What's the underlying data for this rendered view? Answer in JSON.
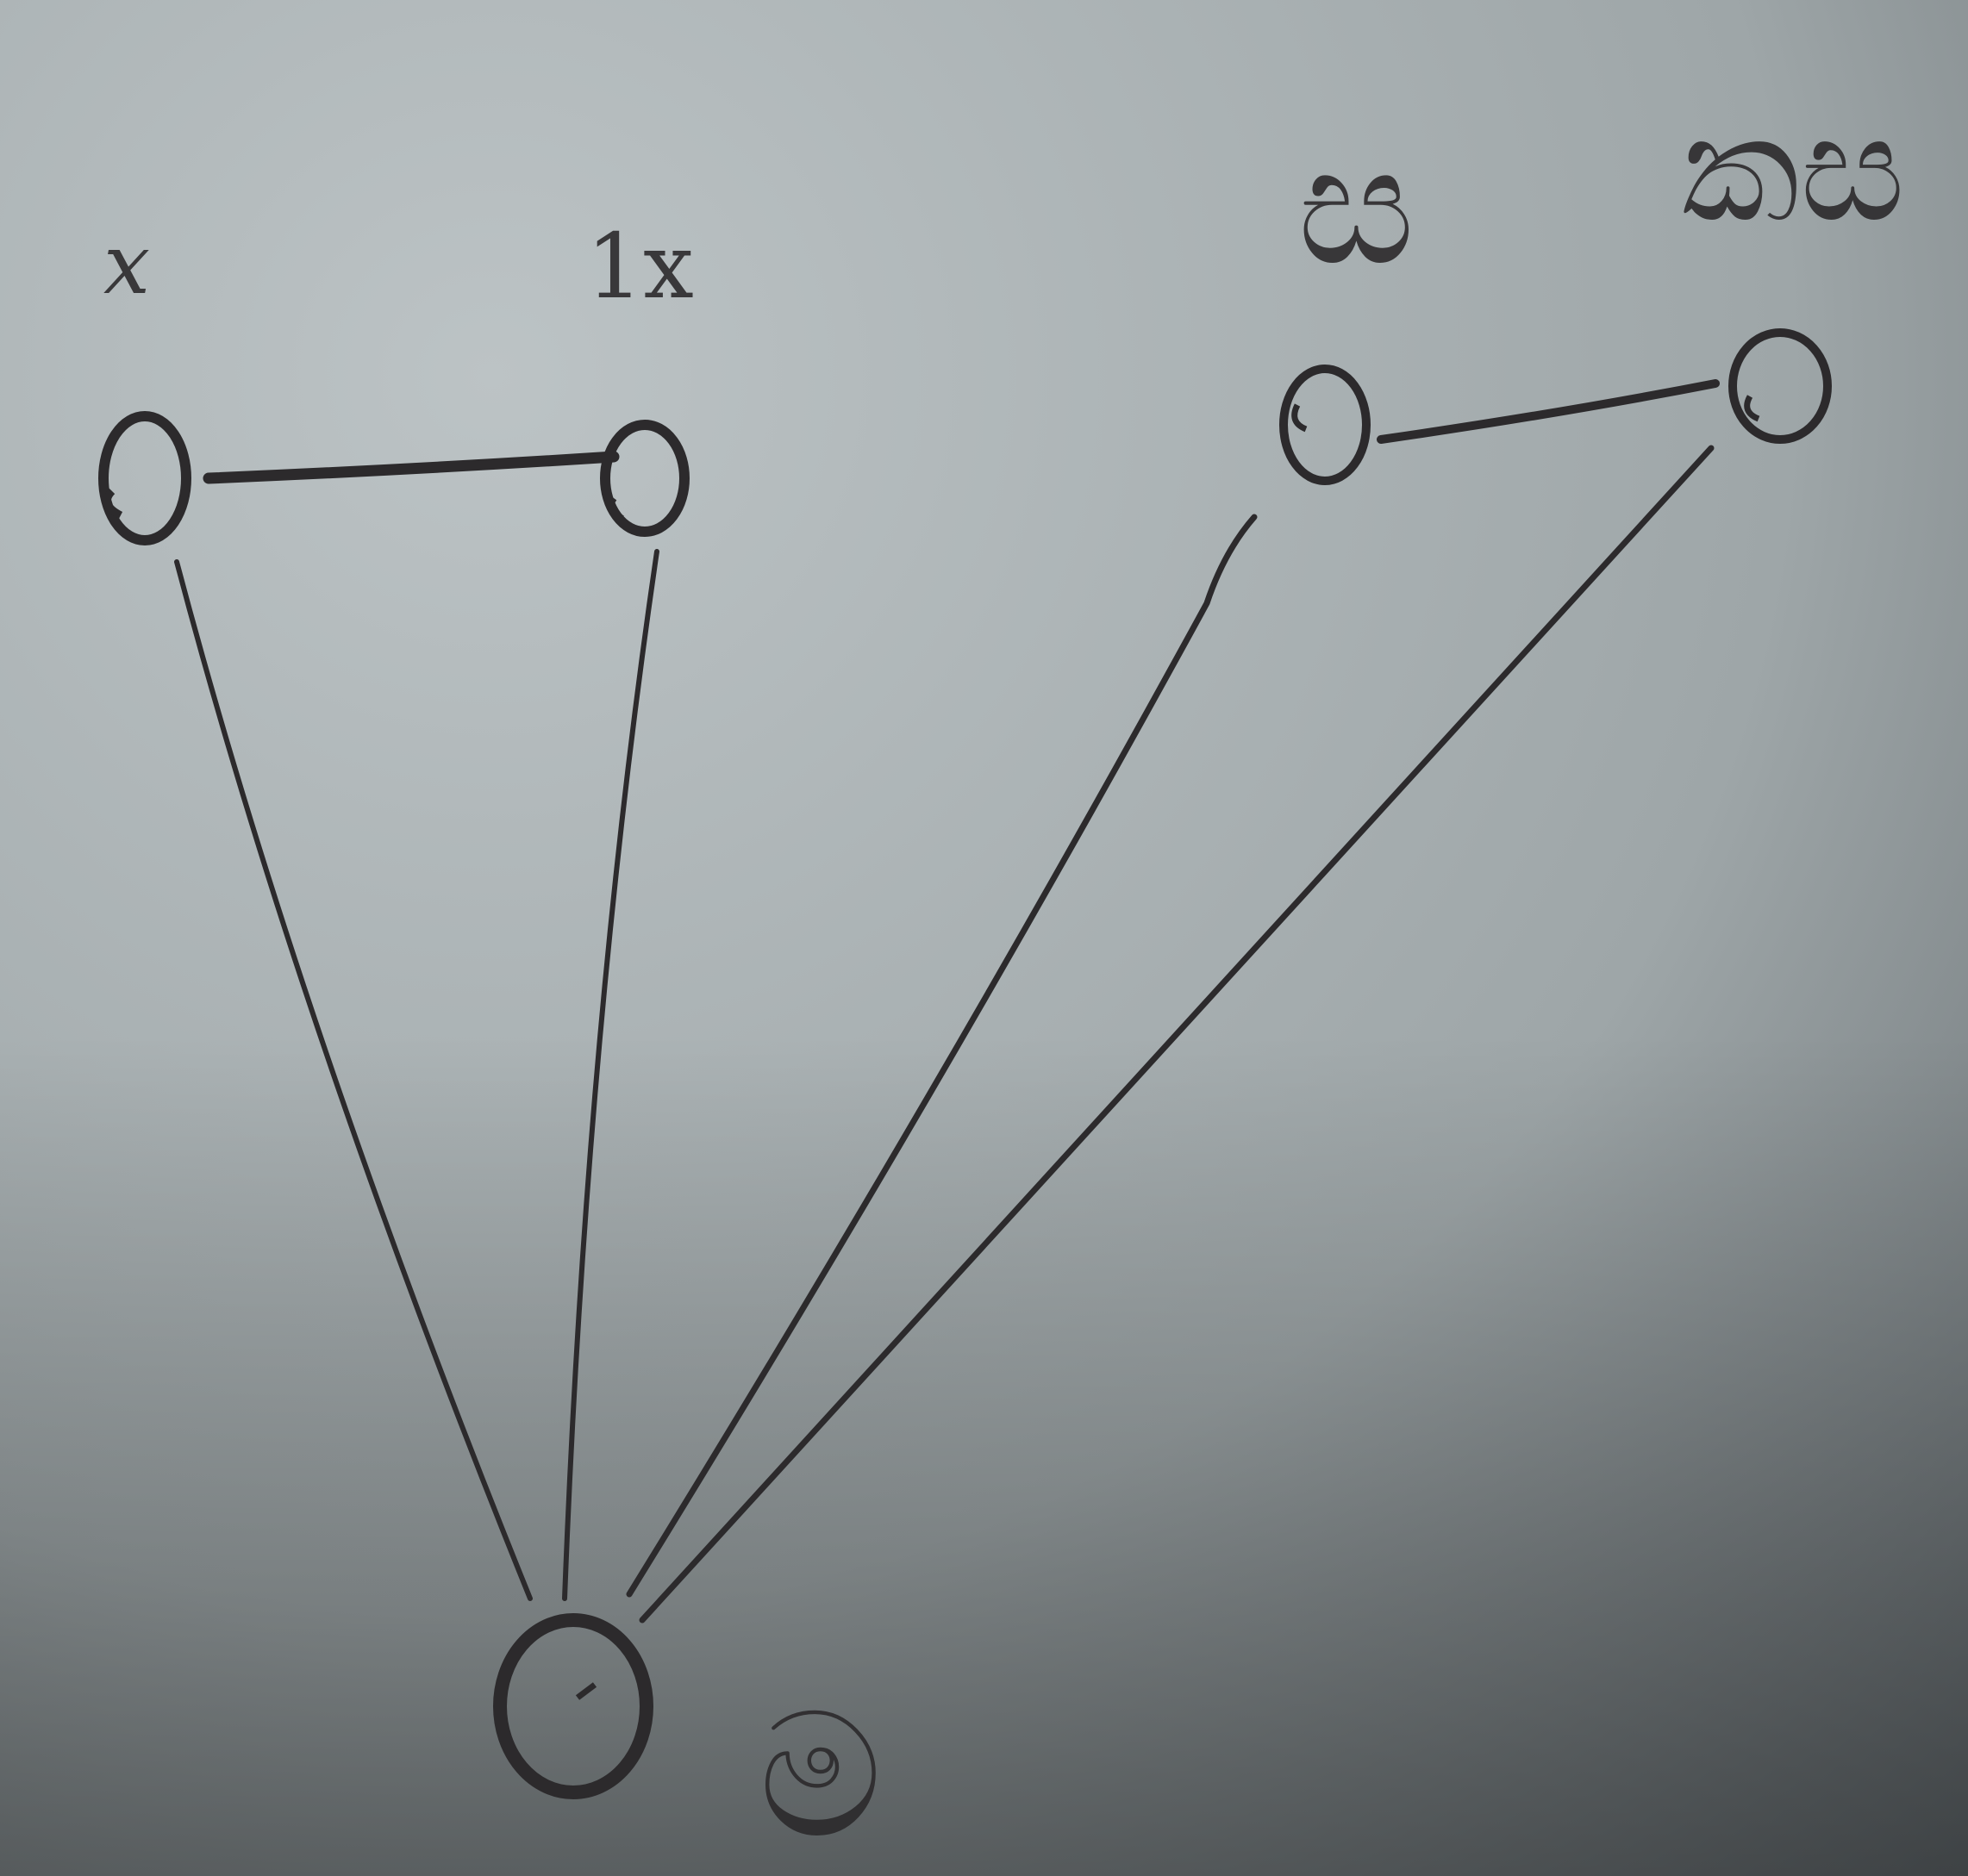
{
  "diagram": {
    "type": "graph",
    "nodes": [
      {
        "id": "x",
        "label": "x"
      },
      {
        "id": "1x",
        "label": "1x"
      },
      {
        "id": "fig-1",
        "label": "ස"
      },
      {
        "id": "fig-2",
        "label": "කස"
      },
      {
        "id": "bottom",
        "label": "ම"
      }
    ],
    "edges": [
      {
        "from": "x",
        "to": "1x",
        "style": "thick"
      },
      {
        "from": "fig-1",
        "to": "fig-2",
        "style": "thick"
      },
      {
        "from": "x",
        "to": "bottom",
        "style": "thin"
      },
      {
        "from": "1x",
        "to": "bottom",
        "style": "thin"
      },
      {
        "from": "fig-1",
        "to": "bottom",
        "style": "thin"
      },
      {
        "from": "fig-2",
        "to": "bottom",
        "style": "thin"
      }
    ]
  },
  "colors": {
    "paper_light": "#b8c0c2",
    "paper_mid": "#9aa2a4",
    "paper_dark": "#4e5354",
    "ink": "#2c2a2c"
  }
}
